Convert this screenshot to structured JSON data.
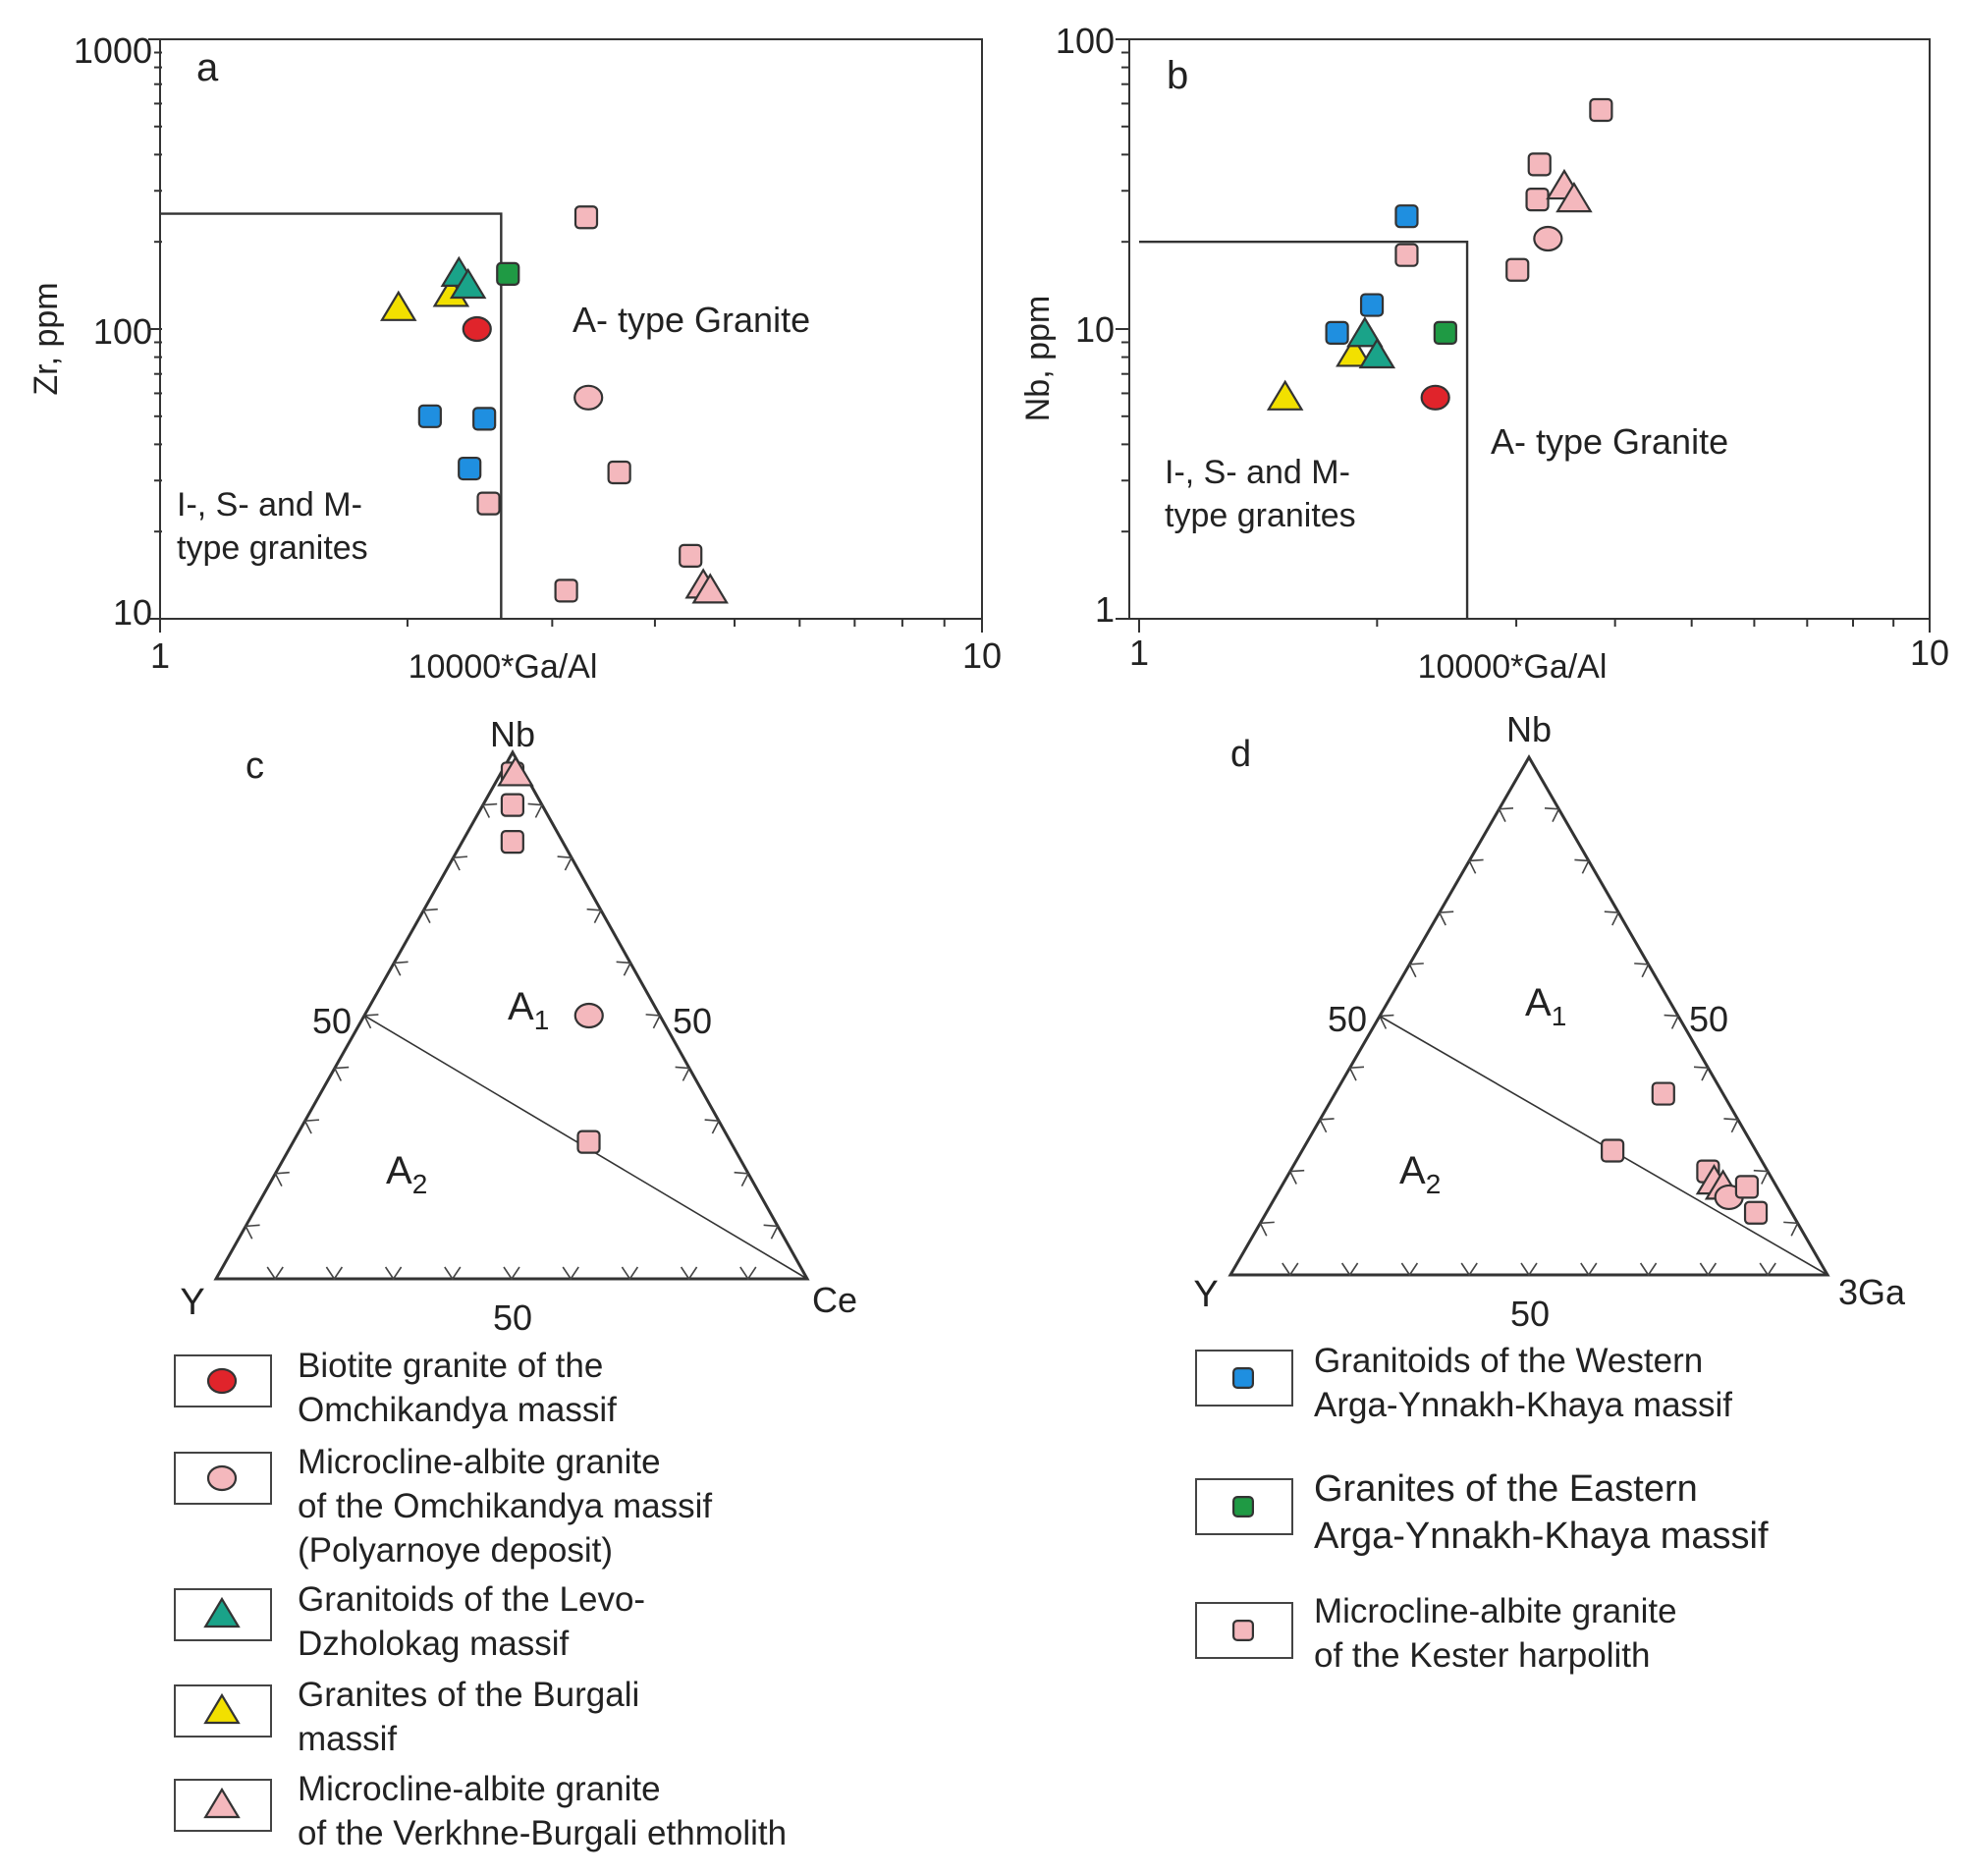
{
  "colors": {
    "red": "#e0242b",
    "pink": "#f4b8bd",
    "teal": "#1aa389",
    "yellow": "#f2e000",
    "blue": "#1f8fe0",
    "green": "#1f9a44",
    "outline": "#333333"
  },
  "chart_data": [
    {
      "id": "a",
      "type": "scatter",
      "panel_label": "a",
      "xlabel": "10000*Ga/Al",
      "ylabel": "Zr, ppm",
      "xscale": "log",
      "yscale": "log",
      "xlim": [
        1,
        10
      ],
      "ylim": [
        10,
        1000
      ],
      "x_ticks": [
        "1",
        "10"
      ],
      "y_ticks": [
        "10",
        "100",
        "1000"
      ],
      "field_box": {
        "x": [
          1,
          2.6
        ],
        "y": [
          10,
          250
        ]
      },
      "field_labels": [
        {
          "lines": [
            "I-, S- and M-",
            "type granites"
          ],
          "at": [
            1.06,
            22
          ]
        },
        {
          "lines": [
            "A- type Granite"
          ],
          "at": [
            3.2,
            97
          ]
        }
      ],
      "points": [
        {
          "symbol": "triangle",
          "color": "yellow",
          "x": 1.95,
          "y": 118
        },
        {
          "symbol": "triangle",
          "color": "yellow",
          "x": 2.26,
          "y": 132
        },
        {
          "symbol": "triangle",
          "color": "teal",
          "x": 2.31,
          "y": 155
        },
        {
          "symbol": "triangle",
          "color": "teal",
          "x": 2.37,
          "y": 141
        },
        {
          "symbol": "square",
          "color": "green",
          "x": 2.65,
          "y": 155
        },
        {
          "symbol": "circle",
          "color": "red",
          "x": 2.43,
          "y": 100
        },
        {
          "symbol": "square",
          "color": "blue",
          "x": 2.13,
          "y": 50
        },
        {
          "symbol": "square",
          "color": "blue",
          "x": 2.48,
          "y": 49
        },
        {
          "symbol": "square",
          "color": "blue",
          "x": 2.38,
          "y": 33
        },
        {
          "symbol": "square",
          "color": "pink",
          "x": 2.51,
          "y": 25
        },
        {
          "symbol": "square",
          "color": "pink",
          "x": 3.3,
          "y": 243
        },
        {
          "symbol": "circle",
          "color": "pink",
          "x": 3.32,
          "y": 58
        },
        {
          "symbol": "square",
          "color": "pink",
          "x": 3.62,
          "y": 32
        },
        {
          "symbol": "square",
          "color": "pink",
          "x": 4.42,
          "y": 16.5
        },
        {
          "symbol": "square",
          "color": "pink",
          "x": 3.12,
          "y": 12.5
        },
        {
          "symbol": "triangle",
          "color": "pink",
          "x": 4.58,
          "y": 13
        },
        {
          "symbol": "triangle",
          "color": "pink",
          "x": 4.67,
          "y": 12.5
        }
      ]
    },
    {
      "id": "b",
      "type": "scatter",
      "panel_label": "b",
      "xlabel": "10000*Ga/Al",
      "ylabel": "Nb, ppm",
      "xscale": "log",
      "yscale": "log",
      "xlim": [
        1,
        10
      ],
      "ylim": [
        1,
        100
      ],
      "x_ticks": [
        "1",
        "10"
      ],
      "y_ticks": [
        "1",
        "10",
        "100"
      ],
      "field_box": {
        "x": [
          1,
          2.6
        ],
        "y": [
          1,
          20
        ]
      },
      "field_labels": [
        {
          "lines": [
            "I-, S- and M-",
            "type granites"
          ],
          "at": [
            1.04,
            2.4
          ]
        },
        {
          "lines": [
            "A- type Granite"
          ],
          "at": [
            2.9,
            5.9
          ]
        }
      ],
      "points": [
        {
          "symbol": "triangle",
          "color": "yellow",
          "x": 1.53,
          "y": 5.8
        },
        {
          "symbol": "triangle",
          "color": "yellow",
          "x": 1.87,
          "y": 8.2
        },
        {
          "symbol": "triangle",
          "color": "teal",
          "x": 1.93,
          "y": 9.6
        },
        {
          "symbol": "triangle",
          "color": "teal",
          "x": 2.0,
          "y": 8.1
        },
        {
          "symbol": "circle",
          "color": "red",
          "x": 2.37,
          "y": 5.8
        },
        {
          "symbol": "square",
          "color": "green",
          "x": 2.44,
          "y": 9.7
        },
        {
          "symbol": "square",
          "color": "blue",
          "x": 1.78,
          "y": 9.7
        },
        {
          "symbol": "square",
          "color": "blue",
          "x": 1.97,
          "y": 12.1
        },
        {
          "symbol": "square",
          "color": "blue",
          "x": 2.18,
          "y": 24.5
        },
        {
          "symbol": "square",
          "color": "pink",
          "x": 2.18,
          "y": 18
        },
        {
          "symbol": "square",
          "color": "pink",
          "x": 3.01,
          "y": 16
        },
        {
          "symbol": "circle",
          "color": "pink",
          "x": 3.29,
          "y": 20.5
        },
        {
          "symbol": "square",
          "color": "pink",
          "x": 3.19,
          "y": 28
        },
        {
          "symbol": "square",
          "color": "pink",
          "x": 3.21,
          "y": 37
        },
        {
          "symbol": "triangle",
          "color": "pink",
          "x": 3.45,
          "y": 31
        },
        {
          "symbol": "triangle",
          "color": "pink",
          "x": 3.55,
          "y": 28
        },
        {
          "symbol": "square",
          "color": "pink",
          "x": 3.84,
          "y": 57
        }
      ]
    },
    {
      "id": "c",
      "type": "ternary",
      "panel_label": "c",
      "apex_top": "Nb",
      "apex_left": "Y",
      "apex_right": "Ce",
      "mid_labels": [
        "50",
        "50",
        "50"
      ],
      "fields": [
        "A",
        "A"
      ],
      "field_subscripts": [
        "1",
        "2"
      ],
      "divider": {
        "from": [
          0,
          0.5
        ],
        "to": [
          1,
          0
        ]
      },
      "points": [
        {
          "symbol": "square",
          "color": "pink",
          "nb": 0.96,
          "ce": 0.02
        },
        {
          "symbol": "triangle",
          "color": "pink",
          "nb": 0.96,
          "ce": 0.025
        },
        {
          "symbol": "square",
          "color": "pink",
          "nb": 0.9,
          "ce": 0.05
        },
        {
          "symbol": "square",
          "color": "pink",
          "nb": 0.83,
          "ce": 0.085
        },
        {
          "symbol": "circle",
          "color": "pink",
          "nb": 0.5,
          "ce": 0.38
        },
        {
          "symbol": "square",
          "color": "pink",
          "nb": 0.26,
          "ce": 0.5
        }
      ]
    },
    {
      "id": "d",
      "type": "ternary",
      "panel_label": "d",
      "apex_top": "Nb",
      "apex_left": "Y",
      "apex_right": "3Ga",
      "mid_labels": [
        "50",
        "50",
        "50"
      ],
      "fields": [
        "A",
        "A"
      ],
      "field_subscripts": [
        "1",
        "2"
      ],
      "divider": {
        "from": [
          0,
          0.5
        ],
        "to": [
          1,
          0
        ]
      },
      "points": [
        {
          "symbol": "square",
          "color": "pink",
          "nb": 0.35,
          "ga": 0.55
        },
        {
          "symbol": "square",
          "color": "pink",
          "nb": 0.24,
          "ga": 0.52
        },
        {
          "symbol": "square",
          "color": "pink",
          "nb": 0.2,
          "ga": 0.7
        },
        {
          "symbol": "triangle",
          "color": "pink",
          "nb": 0.18,
          "ga": 0.72
        },
        {
          "symbol": "triangle",
          "color": "pink",
          "nb": 0.17,
          "ga": 0.74
        },
        {
          "symbol": "circle",
          "color": "pink",
          "nb": 0.15,
          "ga": 0.76
        },
        {
          "symbol": "square",
          "color": "pink",
          "nb": 0.17,
          "ga": 0.78
        },
        {
          "symbol": "square",
          "color": "pink",
          "nb": 0.12,
          "ga": 0.82
        }
      ]
    }
  ],
  "legend_left": [
    {
      "symbol": "circle",
      "color": "red",
      "lines": [
        "Biotite granite of the",
        "Omchikandya massif"
      ]
    },
    {
      "symbol": "circle",
      "color": "pink",
      "lines": [
        "Microcline-albite granite",
        "of the Omchikandya massif",
        "(Polyarnoye deposit)"
      ]
    },
    {
      "symbol": "triangle",
      "color": "teal",
      "lines": [
        "Granitoids of the Levo-",
        "Dzholokag massif"
      ]
    },
    {
      "symbol": "triangle",
      "color": "yellow",
      "lines": [
        "Granites of the Burgali",
        "massif"
      ]
    },
    {
      "symbol": "triangle",
      "color": "pink",
      "lines": [
        "Microcline-albite granite",
        "of the Verkhne-Burgali ethmolith"
      ]
    }
  ],
  "legend_right": [
    {
      "symbol": "square",
      "color": "blue",
      "lines": [
        "Granitoids of the Western",
        "Arga-Ynnakh-Khaya massif"
      ]
    },
    {
      "symbol": "square",
      "color": "green",
      "lines": [
        "Granites of the Eastern",
        "Arga-Ynnakh-Khaya massif"
      ]
    },
    {
      "symbol": "square",
      "color": "pink",
      "lines": [
        "Microcline-albite granite",
        "of the Kester harpolith"
      ]
    }
  ]
}
